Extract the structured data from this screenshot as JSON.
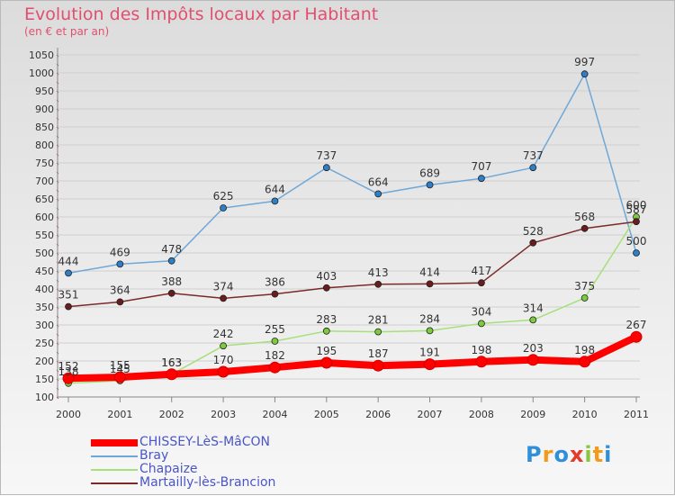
{
  "title": "Evolution des Impôts locaux par Habitant",
  "subtitle": "(en € et par an)",
  "logo": {
    "letters": [
      "P",
      "r",
      "o",
      "x",
      "i",
      "t",
      "i"
    ],
    "colors": [
      "#2f8fd8",
      "#f39a1b",
      "#2f8fd8",
      "#e33a2b",
      "#8cc63f",
      "#f39a1b",
      "#2f8fd8"
    ]
  },
  "chart_data": {
    "type": "line",
    "x": [
      "2000",
      "2001",
      "2002",
      "2003",
      "2004",
      "2005",
      "2006",
      "2007",
      "2008",
      "2009",
      "2010",
      "2011"
    ],
    "ylim": [
      100,
      1050
    ],
    "yticks": [
      100,
      150,
      200,
      250,
      300,
      350,
      400,
      450,
      500,
      550,
      600,
      650,
      700,
      750,
      800,
      850,
      900,
      950,
      1000,
      1050
    ],
    "grid": "horizontal",
    "legend_position": "bottom-left",
    "series": [
      {
        "name": "CHISSEY-LèS-MâCON",
        "color": "#ff0000",
        "width": 8,
        "marker": 6,
        "values": [
          152,
          155,
          163,
          170,
          182,
          195,
          187,
          191,
          198,
          203,
          198,
          267
        ],
        "labels": [
          "152",
          "155",
          "163",
          "170",
          "182",
          "195",
          "187",
          "191",
          "198",
          "203",
          "198",
          "267"
        ]
      },
      {
        "name": "Bray",
        "color": "#6fa7d8",
        "width": 1.5,
        "marker": 3,
        "marker_color": "#2f7fc8",
        "values": [
          444,
          469,
          478,
          625,
          644,
          737,
          664,
          689,
          707,
          737,
          997,
          500
        ],
        "labels": [
          "444",
          "469",
          "478",
          "625",
          "644",
          "737",
          "664",
          "689",
          "707",
          "737",
          "997",
          "500"
        ]
      },
      {
        "name": "Chapaize",
        "color": "#a5e07a",
        "width": 1.5,
        "marker": 3,
        "marker_color": "#7ccb3e",
        "values": [
          138,
          145,
          163,
          242,
          255,
          283,
          281,
          284,
          304,
          314,
          375,
          600
        ],
        "labels": [
          "138",
          "145",
          "163",
          "242",
          "255",
          "283",
          "281",
          "284",
          "304",
          "314",
          "375",
          "600"
        ]
      },
      {
        "name": "Martailly-lès-Brancion",
        "color": "#7a2a2a",
        "width": 1.5,
        "marker": 3,
        "marker_color": "#6b1c1c",
        "values": [
          351,
          364,
          388,
          374,
          386,
          403,
          413,
          414,
          417,
          528,
          568,
          587
        ],
        "labels": [
          "351",
          "364",
          "388",
          "374",
          "386",
          "403",
          "413",
          "414",
          "417",
          "528",
          "568",
          "587"
        ]
      }
    ]
  }
}
